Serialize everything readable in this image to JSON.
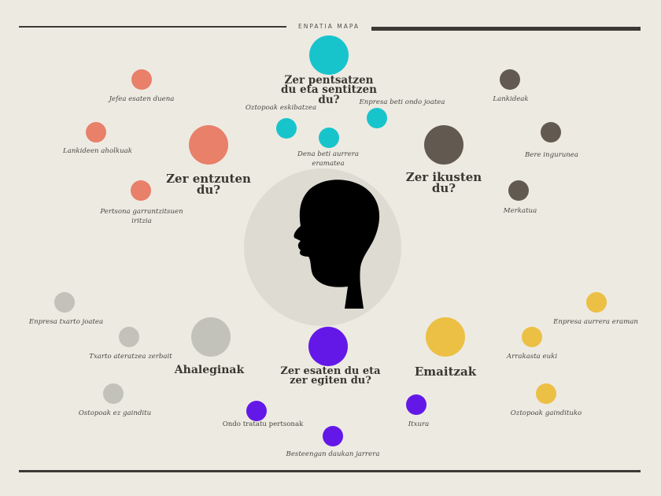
{
  "title": "ENPATIA MAPA",
  "colors": {
    "background": "#edeae2",
    "orange": "#e8806a",
    "teal": "#18c4cc",
    "brown": "#625a50",
    "gray": "#c2c2ba",
    "purple": "#6418e8",
    "yellow": "#ecc044",
    "head": "#000000",
    "head_ring": "#dedbd2"
  },
  "sections": {
    "think": {
      "heading": "Zer pentsatzen\ndu eta sentitzen\ndu?",
      "items": [
        "Oztopoak eskibatzea",
        "Enpresa beti ondo joatea",
        "Dena beti aurrera\neramatea"
      ]
    },
    "hear": {
      "heading": "Zer entzuten\ndu?",
      "items": [
        "Jefea esaten duena",
        "Lankideen aholkuak",
        "Pertsona garrantzitsuen\niritzia"
      ]
    },
    "see": {
      "heading": "Zer ikusten\ndu?",
      "items": [
        "Lankideak",
        "Bere ingurunea",
        "Merkatua"
      ]
    },
    "pains": {
      "heading": "Ahaleginak",
      "items": [
        "Enpresa txarto joatea",
        "Txarto ateratzea zerbait",
        "Ostopoak ez gainditu"
      ]
    },
    "say": {
      "heading": "Zer esaten du eta\nzer egiten du?",
      "items": [
        "Ondo tratatu pertsonak",
        "Itxura",
        "Besteengan daukan jarrera"
      ]
    },
    "gains": {
      "heading": "Emaitzak",
      "items": [
        "Enpresa aurrera eraman",
        "Arrakasta euki",
        "Oztopoak gaindituko"
      ]
    }
  }
}
